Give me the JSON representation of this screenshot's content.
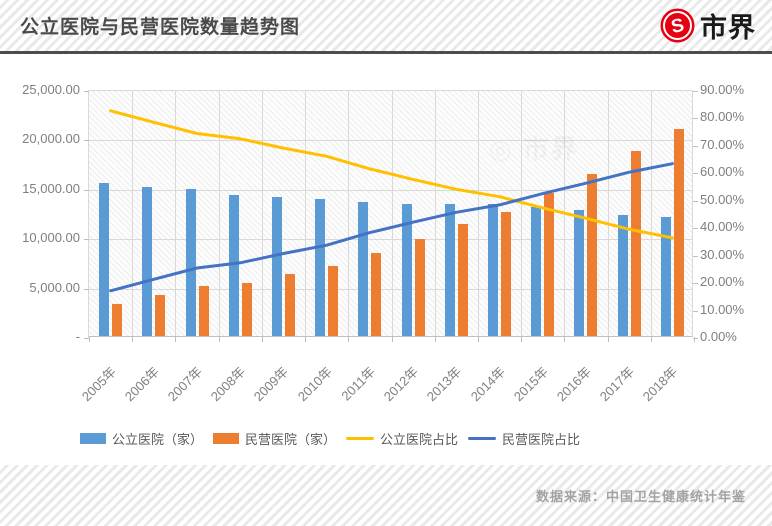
{
  "header": {
    "title": "公立医院与民营医院数量趋势图",
    "brand": "市界",
    "brand_color": "#E60012"
  },
  "footer": {
    "source": "数据来源：中国卫生健康统计年鉴"
  },
  "watermark": "市界",
  "chart_data": {
    "type": "bar",
    "subtype": "bar-line-combo",
    "categories": [
      "2005年",
      "2006年",
      "2007年",
      "2008年",
      "2009年",
      "2010年",
      "2011年",
      "2012年",
      "2013年",
      "2014年",
      "2015年",
      "2016年",
      "2017年",
      "2018年"
    ],
    "series": [
      {
        "name": "公立医院（家）",
        "kind": "bar",
        "axis": "left",
        "color": "#5B9BD5",
        "values": [
          15483,
          15102,
          14900,
          14309,
          14051,
          13850,
          13539,
          13384,
          13396,
          13314,
          13069,
          12708,
          12297,
          12032
        ]
      },
      {
        "name": "民营医院（家）",
        "kind": "bar",
        "axis": "left",
        "color": "#ED7D31",
        "values": [
          3220,
          4105,
          5100,
          5403,
          6240,
          7068,
          8440,
          9786,
          11313,
          12546,
          14518,
          16432,
          18759,
          20977
        ]
      },
      {
        "name": "公立医院占比",
        "kind": "line",
        "axis": "right",
        "color": "#FFC000",
        "values": [
          82.8,
          78.6,
          74.5,
          72.6,
          69.2,
          66.2,
          61.6,
          57.8,
          54.2,
          51.5,
          47.4,
          43.6,
          39.6,
          36.5
        ]
      },
      {
        "name": "民营医院占比",
        "kind": "line",
        "axis": "right",
        "color": "#4472C4",
        "values": [
          17.2,
          21.4,
          25.5,
          27.4,
          30.8,
          33.8,
          38.4,
          42.2,
          45.8,
          48.5,
          52.6,
          56.4,
          60.4,
          63.5
        ]
      }
    ],
    "left_axis": {
      "min": 0,
      "max": 25000,
      "step": 5000,
      "tick_labels": [
        "25,000.00",
        "20,000.00",
        "15,000.00",
        "10,000.00",
        "5,000.00",
        "-"
      ]
    },
    "right_axis": {
      "min": 0,
      "max": 90,
      "step": 10,
      "tick_labels": [
        "90.00%",
        "80.00%",
        "70.00%",
        "60.00%",
        "50.00%",
        "40.00%",
        "30.00%",
        "20.00%",
        "10.00%",
        "0.00%"
      ]
    },
    "grid": true,
    "legend_position": "bottom"
  }
}
